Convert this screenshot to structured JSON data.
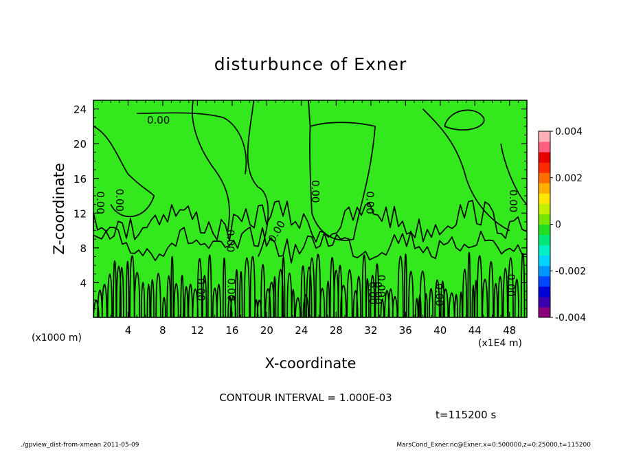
{
  "chart_data": {
    "type": "heatmap",
    "title": "disturbunce of Exner",
    "xlabel": "X-coordinate",
    "ylabel": "Z-coordinate",
    "x_unit_label": "(x1000 m)",
    "x_scale_label": "(x1E4 m)",
    "xlim": [
      0,
      50
    ],
    "ylim": [
      0,
      25
    ],
    "x_ticks": [
      "4",
      "8",
      "12",
      "16",
      "20",
      "24",
      "28",
      "32",
      "36",
      "40",
      "44",
      "48"
    ],
    "y_ticks": [
      "4",
      "8",
      "12",
      "16",
      "20",
      "24"
    ],
    "colorbar": {
      "min": -0.004,
      "max": 0.004,
      "ticks": [
        "0.004",
        "0.002",
        "0",
        "-0.002",
        "-0.004"
      ],
      "colors": [
        "#8a007a",
        "#3a00b0",
        "#0000d8",
        "#0046ff",
        "#0096ff",
        "#00d4ff",
        "#00f0c8",
        "#00e87a",
        "#22dd22",
        "#77e600",
        "#c4f000",
        "#ffe600",
        "#ffb000",
        "#ff6e00",
        "#ff2a00",
        "#e60000",
        "#ff6080",
        "#ffb0b8"
      ]
    },
    "field_color": "#33e81c",
    "contour_labels": [
      "0.00",
      "0.00",
      "0.00",
      "0.00",
      "0.00",
      "0.00",
      "0.00",
      "0.00",
      "0.00",
      "0.00",
      "0.00",
      "0.00",
      "0.00",
      "0.00",
      "0.00"
    ],
    "contour_interval_text": "CONTOUR INTERVAL = 1.000E-03",
    "time_text": "t=115200 s"
  },
  "footer": {
    "left": "./gpview_dist-from-xmean  2011-05-09",
    "right": "MarsCond_Exner.nc@Exner,x=0:500000,z=0:25000,t=115200"
  }
}
